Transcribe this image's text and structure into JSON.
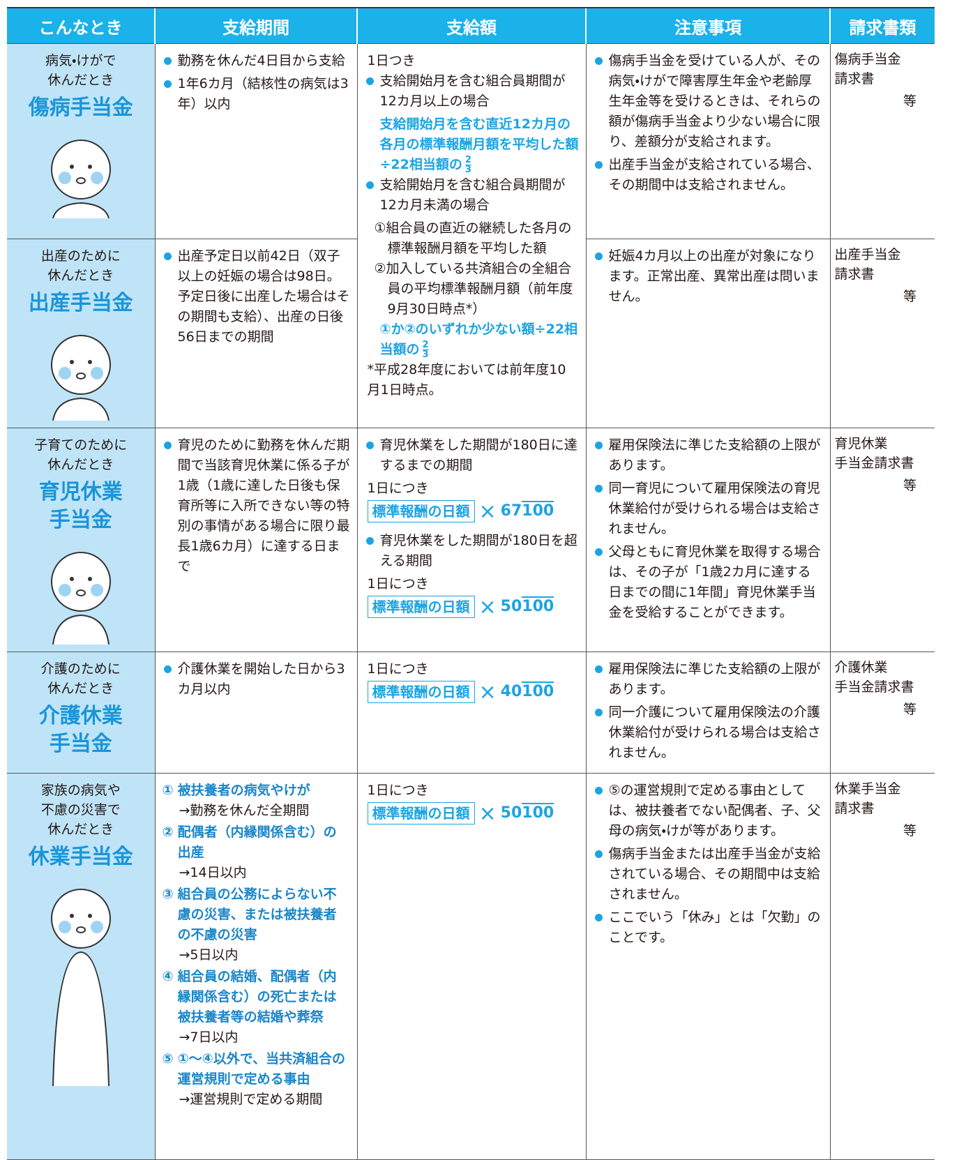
{
  "header": [
    "こんなとき",
    "支給期間",
    "支給額",
    "注意事項",
    "請求書類"
  ],
  "rows": [
    {
      "situation": [
        "病気・けがで",
        "休んだとき"
      ],
      "benefit": [
        "傷病手当金"
      ],
      "period": [
        "勤務を休んだ4日目から支給",
        "1年6カ月（結核性の病気は3年）以内"
      ],
      "amount": [
        {
          "text": "1日つき"
        },
        {
          "bullet": "支給開始月を含む組合員期間が12カ月以上の場合"
        },
        {
          "emph": "支給開始月を含む直近12カ月の各月の標準報酬月額を平均した額÷22相当額の",
          "num": "2",
          "den": "3"
        },
        {
          "bullet": "支給開始月を含む組合員期間が12カ月未満の場合"
        },
        {
          "indent": "①組合員の直近の継続した各月の標準報酬月額を平均した額"
        },
        {
          "indent": "②加入している共済組合の全組合員の平均標準報酬月額（前年度9月30日時点*）"
        },
        {
          "emph": "①か②のいずれか少ない額÷22相当額の",
          "num": "2",
          "den": "3"
        },
        {
          "text": "*平成28年度においては前年度10月1日時点。"
        }
      ],
      "notes": [
        "傷病手当金を受けている人が、その病気・けがで障害厚生年金や老齢厚生年金等を受けるときは、それらの額が傷病手当金より少ない場合に限り、差額分が支給されます。",
        "出産手当金が支給されている場合、その期間中は支給されません。"
      ],
      "docs": [
        "傷病手当金",
        "請求書"
      ],
      "etc": "等"
    },
    {
      "situation": [
        "出産のために",
        "休んだとき"
      ],
      "benefit": [
        "出産手当金"
      ],
      "period": [
        "出産予定日以前42日（双子以上の妊娠の場合は98日。予定日後に出産した場合はその期間も支給）、出産の日後56日までの期間"
      ],
      "notes": [
        "妊娠4カ月以上の出産が対象になります。正常出産、異常出産は問いません。"
      ],
      "docs": [
        "出産手当金",
        "請求書"
      ],
      "etc": "等"
    },
    {
      "situation": [
        "子育てのために",
        "休んだとき"
      ],
      "benefit": [
        "育児休業",
        "手当金"
      ],
      "period": [
        "育児のために勤務を休んだ期間で当該育児休業に係る子が1歳（1歳に達した日後も保育所等に入所できない等の特別の事情がある場合に限り最長1歳6カ月）に達する日まで"
      ],
      "amount": [
        {
          "bullet": "育児休業をした期間が180日に達するまでの期間"
        },
        {
          "text": "1日につき"
        },
        {
          "formula": "標準報酬の日額",
          "op": "×",
          "num": "67",
          "den": "100"
        },
        {
          "bullet": "育児休業をした期間が180日を超える期間"
        },
        {
          "text": "1日につき"
        },
        {
          "formula": "標準報酬の日額",
          "op": "×",
          "num": "50",
          "den": "100"
        }
      ],
      "notes": [
        "雇用保険法に準じた支給額の上限があります。",
        "同一育児について雇用保険法の育児休業給付が受けられる場合は支給されません。",
        "父母ともに育児休業を取得する場合は、その子が「1歳2カ月に達する日までの間に1年間」育児休業手当金を受給することができます。"
      ],
      "docs": [
        "育児休業",
        "手当金請求書"
      ],
      "etc": "等"
    },
    {
      "situation": [
        "介護のために",
        "休んだとき"
      ],
      "benefit": [
        "介護休業",
        "手当金"
      ],
      "period": [
        "介護休業を開始した日から3カ月以内"
      ],
      "amount": [
        {
          "text": "1日につき"
        },
        {
          "formula": "標準報酬の日額",
          "op": "×",
          "num": "40",
          "den": "100"
        }
      ],
      "notes": [
        "雇用保険法に準じた支給額の上限があります。",
        "同一介護について雇用保険法の介護休業給付が受けられる場合は支給されません。"
      ],
      "docs": [
        "介護休業",
        "手当金請求書"
      ],
      "etc": "等"
    },
    {
      "situation": [
        "家族の病気や",
        "不慮の災害で",
        "休んだとき"
      ],
      "benefit": [
        "休業手当金"
      ],
      "period": [
        {
          "mark": "①",
          "head": "被扶養者の病気やけが",
          "sub": "→勤務を休んだ全期間"
        },
        {
          "mark": "②",
          "head": "配偶者（内縁関係含む）の出産",
          "sub": "→14日以内"
        },
        {
          "mark": "③",
          "head": "組合員の公務によらない不慮の災害、または被扶養者の不慮の災害",
          "sub": "→5日以内"
        },
        {
          "mark": "④",
          "head": "組合員の結婚、配偶者（内縁関係含む）の死亡または被扶養者等の結婚や葬祭",
          "sub": "→7日以内"
        },
        {
          "mark": "⑤",
          "head": "①～④以外で、当共済組合の運営規則で定める事由",
          "sub": "→運営規則で定める期間"
        }
      ],
      "amount": [
        {
          "text": "1日につき"
        },
        {
          "formula": "標準報酬の日額",
          "op": "×",
          "num": "50",
          "den": "100"
        }
      ],
      "notes": [
        "⑤の運営規則で定める事由としては、被扶養者でない配偶者、子、父母の病気・けが等があります。",
        "傷病手当金または出産手当金が支給されている場合、その期間中は支給されません。",
        "ここでいう「休み」とは「欠勤」のことです。"
      ],
      "docs": [
        "休業手当金",
        "請求書"
      ],
      "etc": "等"
    }
  ]
}
